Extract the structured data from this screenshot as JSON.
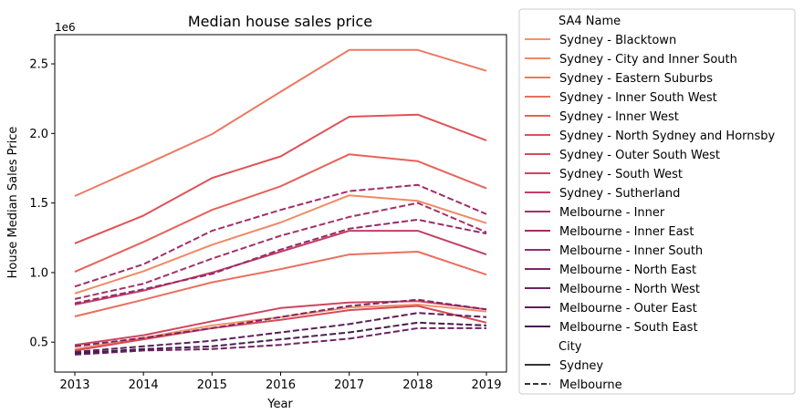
{
  "chart_data": {
    "type": "line",
    "title": "Median house sales price",
    "xlabel": "Year",
    "ylabel": "House Median Sales Price",
    "y_offset_label": "1e6",
    "x": [
      2013,
      2014,
      2015,
      2016,
      2017,
      2018,
      2019
    ],
    "x_ticks": [
      "2013",
      "2014",
      "2015",
      "2016",
      "2017",
      "2018",
      "2019"
    ],
    "ylim": [
      285000,
      2710000
    ],
    "y_ticks": [
      0.5,
      1.0,
      1.5,
      2.0,
      2.5
    ],
    "y_tick_labels": [
      "0.5",
      "1.0",
      "1.5",
      "2.0",
      "2.5"
    ],
    "grid": false,
    "legend": {
      "placement": "outside-right",
      "hue_title": "SA4 Name",
      "style_title": "City",
      "style_entries": [
        {
          "label": "Sydney",
          "dash": "solid"
        },
        {
          "label": "Melbourne",
          "dash": "dashed"
        }
      ]
    },
    "series": [
      {
        "name": "Sydney - Blacktown",
        "color": "#f1936a",
        "dash": "solid",
        "values": [
          450000,
          530000,
          620000,
          680000,
          750000,
          770000,
          720000
        ]
      },
      {
        "name": "Sydney - City and Inner South",
        "color": "#ee8a67",
        "dash": "solid",
        "values": [
          850000,
          1010000,
          1200000,
          1360000,
          1555000,
          1515000,
          1355000
        ]
      },
      {
        "name": "Sydney - Eastern Suburbs",
        "color": "#eb7a62",
        "dash": "solid",
        "values": [
          1550000,
          1770000,
          1995000,
          2300000,
          2600000,
          2600000,
          2450000
        ]
      },
      {
        "name": "Sydney - Inner South West",
        "color": "#e8705f",
        "dash": "solid",
        "values": [
          685000,
          805000,
          930000,
          1025000,
          1130000,
          1150000,
          985000
        ]
      },
      {
        "name": "Sydney - Inner West",
        "color": "#e5635b",
        "dash": "solid",
        "values": [
          1005000,
          1220000,
          1450000,
          1620000,
          1850000,
          1800000,
          1605000
        ]
      },
      {
        "name": "Sydney - North Sydney and Hornsby",
        "color": "#de5257",
        "dash": "solid",
        "values": [
          1210000,
          1410000,
          1680000,
          1835000,
          2120000,
          2135000,
          1950000
        ]
      },
      {
        "name": "Sydney - Outer South West",
        "color": "#d64b59",
        "dash": "solid",
        "values": [
          440000,
          520000,
          600000,
          660000,
          730000,
          760000,
          640000
        ]
      },
      {
        "name": "Sydney - South West",
        "color": "#cd4561",
        "dash": "solid",
        "values": [
          480000,
          550000,
          650000,
          745000,
          785000,
          795000,
          735000
        ]
      },
      {
        "name": "Sydney - Sutherland",
        "color": "#c23f64",
        "dash": "solid",
        "values": [
          770000,
          870000,
          1000000,
          1150000,
          1300000,
          1300000,
          1130000
        ]
      },
      {
        "name": "Melbourne - Inner",
        "color": "#a23366",
        "dash": "dashed",
        "values": [
          810000,
          920000,
          1100000,
          1265000,
          1400000,
          1500000,
          1290000
        ]
      },
      {
        "name": "Melbourne - Inner East",
        "color": "#a12d69",
        "dash": "dashed",
        "values": [
          900000,
          1060000,
          1300000,
          1450000,
          1585000,
          1630000,
          1420000
        ]
      },
      {
        "name": "Melbourne - Inner South",
        "color": "#952a6b",
        "dash": "dashed",
        "values": [
          780000,
          880000,
          990000,
          1165000,
          1315000,
          1380000,
          1280000
        ]
      },
      {
        "name": "Melbourne - North East",
        "color": "#7d2566",
        "dash": "dashed",
        "values": [
          470000,
          530000,
          600000,
          680000,
          760000,
          805000,
          735000
        ]
      },
      {
        "name": "Melbourne - North West",
        "color": "#6d2262",
        "dash": "dashed",
        "values": [
          410000,
          440000,
          450000,
          480000,
          525000,
          600000,
          600000
        ]
      },
      {
        "name": "Melbourne - Outer East",
        "color": "#5a1f5c",
        "dash": "dashed",
        "values": [
          430000,
          470000,
          510000,
          570000,
          630000,
          710000,
          680000
        ]
      },
      {
        "name": "Melbourne - South East",
        "color": "#451c4d",
        "dash": "dashed",
        "values": [
          420000,
          450000,
          470000,
          520000,
          570000,
          640000,
          620000
        ]
      }
    ]
  }
}
